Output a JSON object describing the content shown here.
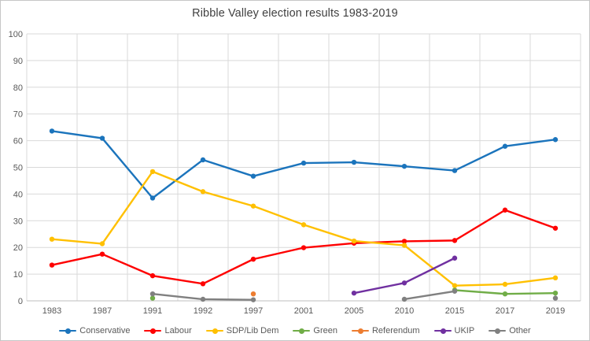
{
  "chart_data": {
    "type": "line",
    "title": "Ribble Valley election results 1983-2019",
    "xlabel": "",
    "ylabel": "",
    "categories": [
      "1983",
      "1987",
      "1991",
      "1992",
      "1997",
      "2001",
      "2005",
      "2010",
      "2015",
      "2017",
      "2019"
    ],
    "ylim": [
      0,
      100
    ],
    "ytick_step": 10,
    "grid": true,
    "legend_position": "bottom",
    "axis_text_color": "#595959",
    "gridline_color": "#d9d9d9",
    "axis_line_color": "#bfbfbf",
    "series": [
      {
        "name": "Conservative",
        "color": "#1b74bc",
        "values": [
          63.6,
          60.9,
          38.5,
          52.8,
          46.7,
          51.6,
          51.9,
          50.4,
          48.8,
          57.9,
          60.4
        ]
      },
      {
        "name": "Labour",
        "color": "#fe0000",
        "values": [
          13.4,
          17.5,
          9.4,
          6.4,
          15.6,
          19.9,
          21.6,
          22.3,
          22.6,
          34.0,
          27.2
        ]
      },
      {
        "name": "SDP/Lib Dem",
        "color": "#ffc000",
        "values": [
          23.1,
          21.4,
          48.4,
          40.9,
          35.5,
          28.5,
          22.4,
          20.8,
          5.7,
          6.2,
          8.6
        ]
      },
      {
        "name": "Green",
        "color": "#70ad47",
        "values": [
          null,
          null,
          1.0,
          null,
          null,
          null,
          null,
          null,
          4.0,
          2.6,
          2.9
        ]
      },
      {
        "name": "Referendum",
        "color": "#ed7d31",
        "values": [
          null,
          null,
          null,
          null,
          2.6,
          null,
          null,
          null,
          null,
          null,
          null
        ]
      },
      {
        "name": "UKIP",
        "color": "#7030a0",
        "values": [
          null,
          null,
          null,
          null,
          null,
          null,
          2.9,
          6.7,
          16.0,
          null,
          null
        ]
      },
      {
        "name": "Other",
        "color": "#808080",
        "values": [
          null,
          null,
          2.6,
          0.6,
          0.4,
          null,
          null,
          0.6,
          3.6,
          null,
          1.0
        ]
      }
    ]
  }
}
